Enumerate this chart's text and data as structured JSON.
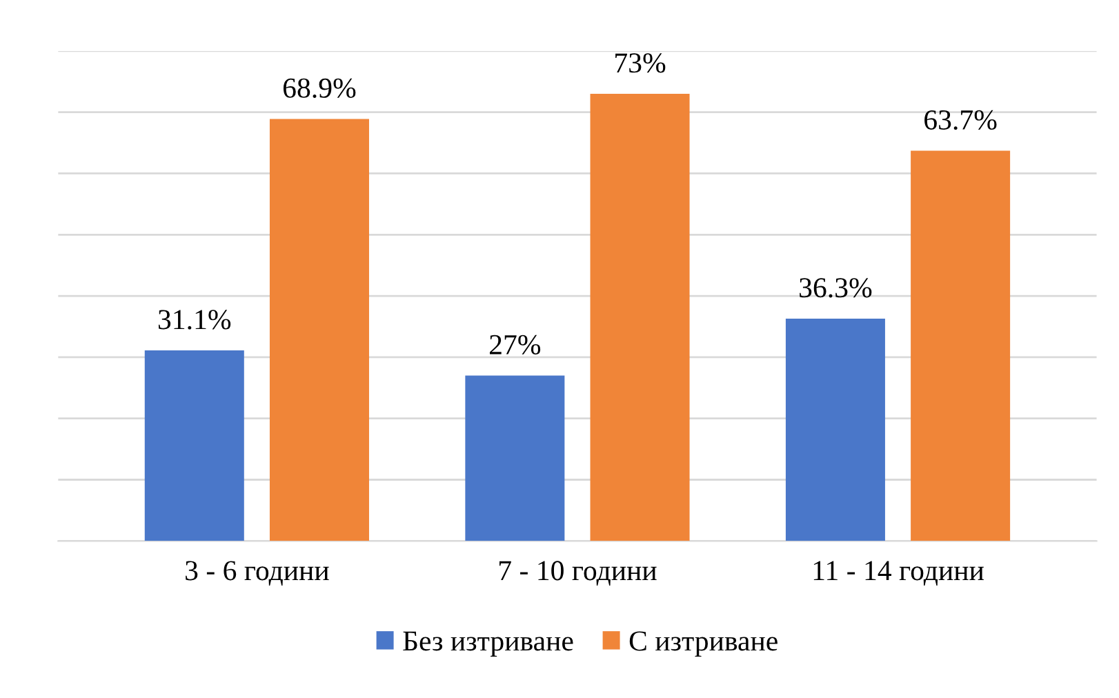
{
  "chart_data": {
    "type": "bar",
    "categories": [
      "3 - 6 години",
      "7 - 10 години",
      "11 - 14 години"
    ],
    "series": [
      {
        "name": "Без изтриване",
        "color": "#4a77c9",
        "values": [
          31.1,
          27,
          36.3
        ],
        "value_labels": [
          "31.1%",
          "27%",
          "36.3%"
        ]
      },
      {
        "name": "С изтриване",
        "color": "#f08538",
        "values": [
          68.9,
          73,
          63.7
        ],
        "value_labels": [
          "68.9%",
          "73%",
          "63.7%"
        ]
      }
    ],
    "ylim": [
      0,
      80
    ],
    "yticks": [
      {
        "value": 0,
        "label": null
      },
      {
        "value": 10,
        "label": null
      },
      {
        "value": 20,
        "label": null
      },
      {
        "value": 30,
        "label": null
      },
      {
        "value": 40,
        "label": null
      },
      {
        "value": 50,
        "label": null
      },
      {
        "value": 60,
        "label": null
      },
      {
        "value": 70,
        "label": null
      },
      {
        "value": 80,
        "label": null
      }
    ],
    "grid": "y",
    "legend": "bottom",
    "tick_labels": "x"
  }
}
